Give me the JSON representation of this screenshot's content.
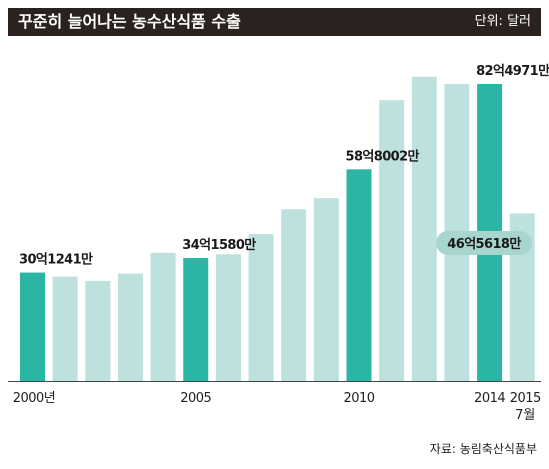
{
  "header": {
    "title": "꾸준히 늘어나는 농수산식품 수출",
    "unit": "단위: 달러"
  },
  "source": "자료: 농림축산식품부",
  "colors": {
    "header_bg": "#2b2220",
    "highlight": "#2bb5a5",
    "normal": "#bde1dd",
    "callout_bg": "#a8d5d0"
  },
  "chart_data": {
    "type": "bar",
    "title": "꾸준히 늘어나는 농수산식품 수출",
    "unit": "단위: 달러",
    "categories": [
      "2000",
      "2001",
      "2002",
      "2003",
      "2004",
      "2005",
      "2006",
      "2007",
      "2008",
      "2009",
      "2010",
      "2011",
      "2012",
      "2013",
      "2014",
      "2015.7"
    ],
    "values": [
      30.1241,
      29,
      27.8,
      29.8,
      35.6,
      34.158,
      35.2,
      40.8,
      47.7,
      50.8,
      58.8002,
      78,
      84.5,
      82.5,
      82.4971,
      46.5618
    ],
    "highlighted": [
      true,
      false,
      false,
      false,
      false,
      true,
      false,
      false,
      false,
      false,
      true,
      false,
      false,
      false,
      true,
      false
    ],
    "data_labels": [
      {
        "index": 0,
        "text": "30억1241만"
      },
      {
        "index": 5,
        "text": "34억1580만"
      },
      {
        "index": 10,
        "text": "58억8002만"
      },
      {
        "index": 14,
        "text": "82억4971만"
      },
      {
        "index": 15,
        "text": "46억5618만",
        "style": "callout"
      }
    ],
    "x_tick_labels": [
      {
        "index": 0,
        "text": "2000년"
      },
      {
        "index": 5,
        "text": "2005"
      },
      {
        "index": 10,
        "text": "2010"
      },
      {
        "index": 14,
        "text": "2014"
      },
      {
        "index": 15,
        "text": "2015"
      }
    ],
    "x_tick_sublabels": [
      {
        "index": 15,
        "text": "7월"
      }
    ],
    "ylim": [
      0,
      100
    ],
    "grid": false,
    "xlabel": "",
    "ylabel": ""
  }
}
